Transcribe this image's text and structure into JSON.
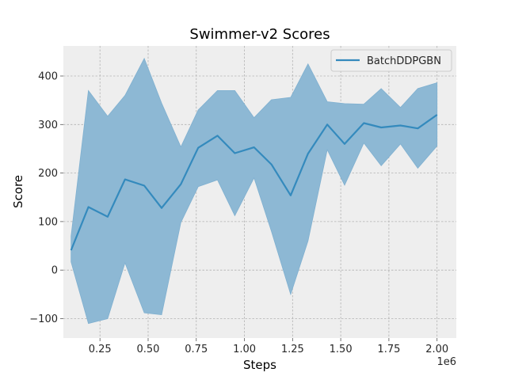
{
  "chart_data": {
    "type": "line",
    "title": "Swimmer-v2 Scores",
    "xlabel": "Steps",
    "ylabel": "Score",
    "x_offset_label": "1e6",
    "xlim": [
      0.06,
      2.1
    ],
    "ylim": [
      -140,
      462
    ],
    "xticks": [
      0.25,
      0.5,
      0.75,
      1.0,
      1.25,
      1.5,
      1.75,
      2.0
    ],
    "xtick_labels": [
      "0.25",
      "0.50",
      "0.75",
      "1.00",
      "1.25",
      "1.50",
      "1.75",
      "2.00"
    ],
    "yticks": [
      -100,
      0,
      100,
      200,
      300,
      400
    ],
    "ytick_labels": [
      "−100",
      "0",
      "100",
      "200",
      "300",
      "400"
    ],
    "grid": true,
    "legend_position": "top-right",
    "series": [
      {
        "name": "BatchDDPGBN",
        "color": "#348abd",
        "band_color": "#8db8d4",
        "x": [
          0.1,
          0.19,
          0.29,
          0.38,
          0.48,
          0.57,
          0.67,
          0.76,
          0.86,
          0.95,
          1.05,
          1.14,
          1.24,
          1.33,
          1.43,
          1.52,
          1.62,
          1.71,
          1.81,
          1.9,
          2.0
        ],
        "y": [
          41,
          130,
          110,
          187,
          174,
          128,
          177,
          252,
          277,
          241,
          253,
          218,
          154,
          240,
          300,
          260,
          303,
          294,
          298,
          292,
          320
        ],
        "upper": [
          70,
          370,
          317,
          360,
          436,
          344,
          254,
          330,
          370,
          370,
          314,
          351,
          356,
          425,
          347,
          343,
          342,
          374,
          335,
          374,
          386
        ],
        "lower": [
          17,
          -110,
          -100,
          15,
          -88,
          -92,
          98,
          172,
          186,
          112,
          190,
          80,
          -50,
          60,
          248,
          175,
          262,
          215,
          260,
          210,
          256
        ]
      }
    ]
  }
}
